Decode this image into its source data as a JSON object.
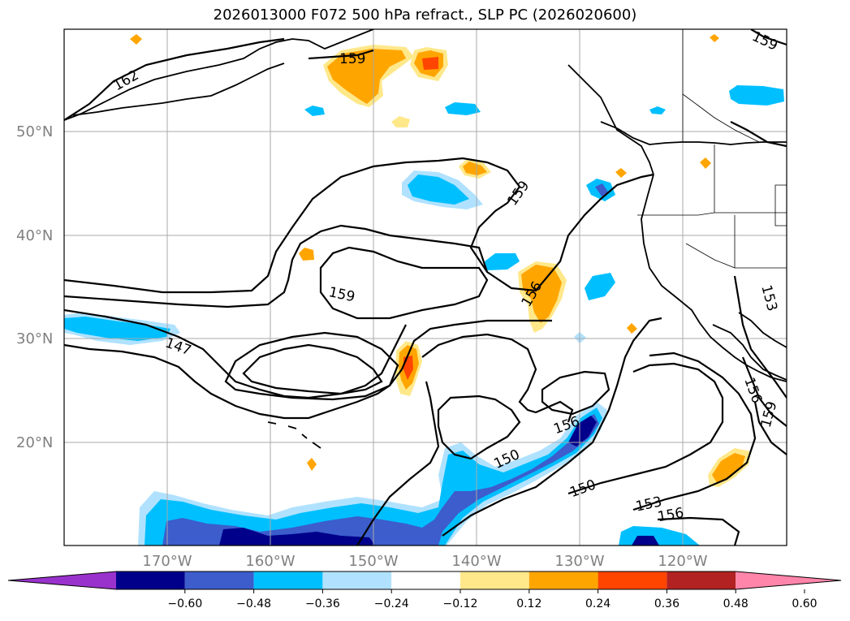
{
  "title": "2026013000 F072 500 hPa refract., SLP PC (2026020600)",
  "lat_labels": [
    "50°N",
    "40°N",
    "30°N",
    "20°N"
  ],
  "lon_labels": [
    "170°W",
    "160°W",
    "150°W",
    "140°W",
    "130°W",
    "120°W"
  ],
  "contour_labels": [
    "162",
    "159",
    "159",
    "159",
    "156",
    "147",
    "156",
    "150",
    "150",
    "153",
    "156",
    "153",
    "156",
    "159",
    "159"
  ],
  "colorbar": {
    "ticks": [
      "−0.60",
      "−0.48",
      "−0.36",
      "−0.24",
      "−0.12",
      "0.12",
      "0.24",
      "0.36",
      "0.48",
      "0.60"
    ],
    "colors": [
      "#9932cc",
      "#00008b",
      "#3c5dcb",
      "#00bfff",
      "#b0e2ff",
      "#ffffff",
      "#ffe88a",
      "#ffa500",
      "#ff4500",
      "#b22222",
      "#ff85aa"
    ]
  },
  "fill_colors": {
    "neg_light": "#b0e2ff",
    "neg_mid": "#00bfff",
    "neg_strong": "#3c5dcb",
    "neg_max": "#00008b",
    "pos_light": "#ffe88a",
    "pos_mid": "#ffa500",
    "pos_strong": "#ff4500"
  }
}
